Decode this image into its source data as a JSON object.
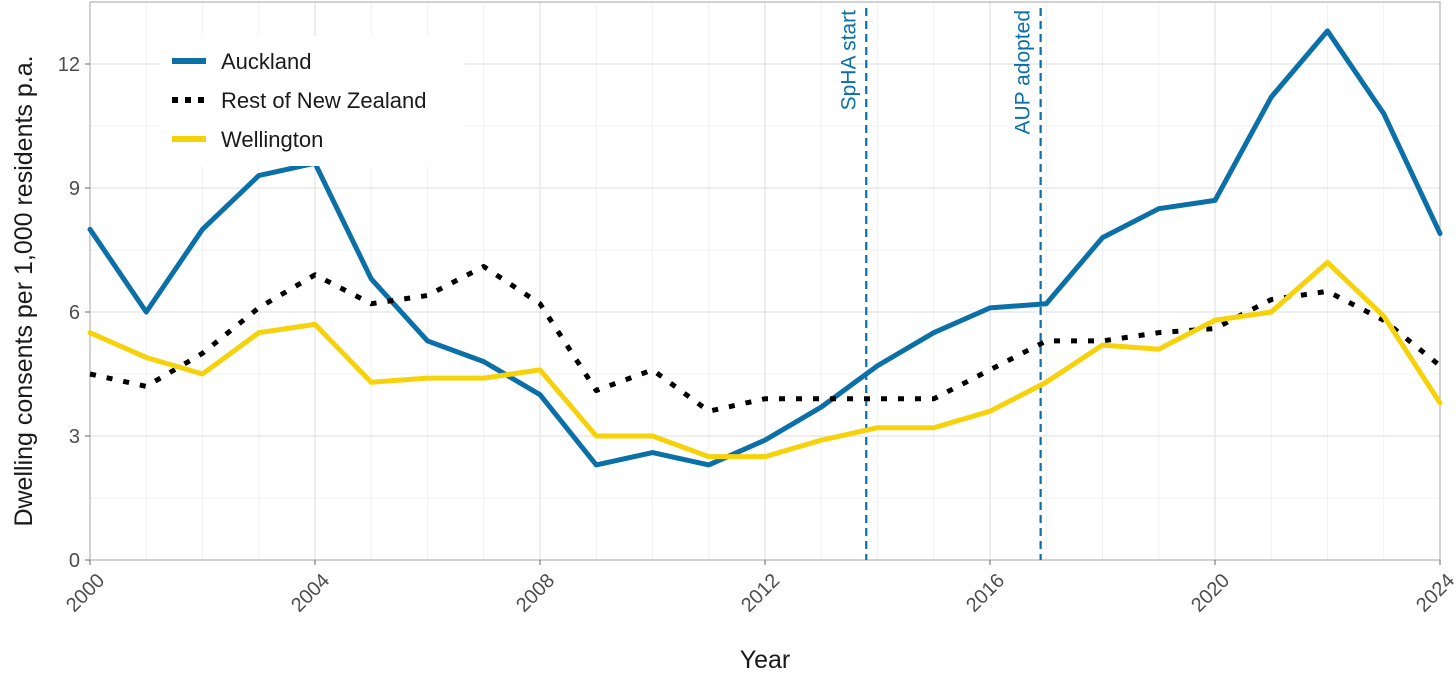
{
  "chart_data": {
    "type": "line",
    "title": "",
    "xlabel": "Year",
    "ylabel": "Dwelling consents per 1,000 residents p.a.",
    "xlim": [
      2000,
      2024
    ],
    "ylim": [
      0,
      13.5
    ],
    "x_ticks": [
      "2000",
      "2004",
      "2008",
      "2012",
      "2016",
      "2020",
      "2024"
    ],
    "y_ticks": [
      "0",
      "3",
      "6",
      "9",
      "12"
    ],
    "grid": true,
    "legend_position": "top-left",
    "x": [
      2000,
      2001,
      2002,
      2003,
      2004,
      2005,
      2006,
      2007,
      2008,
      2009,
      2010,
      2011,
      2012,
      2013,
      2014,
      2015,
      2016,
      2017,
      2018,
      2019,
      2020,
      2021,
      2022,
      2023,
      2024
    ],
    "series": [
      {
        "name": "Auckland",
        "color": "#0b6fa8",
        "style": "solid",
        "values": [
          8.0,
          6.0,
          8.0,
          9.3,
          9.6,
          6.8,
          5.3,
          4.8,
          4.0,
          2.3,
          2.6,
          2.3,
          2.9,
          3.7,
          4.7,
          5.5,
          6.1,
          6.2,
          7.8,
          8.5,
          8.7,
          11.2,
          12.8,
          10.8,
          7.9
        ]
      },
      {
        "name": "Rest of New Zealand",
        "color": "#000000",
        "style": "dotted",
        "values": [
          4.5,
          4.2,
          5.0,
          6.1,
          6.9,
          6.2,
          6.4,
          7.1,
          6.2,
          4.1,
          4.6,
          3.6,
          3.9,
          3.9,
          3.9,
          3.9,
          4.6,
          5.3,
          5.3,
          5.5,
          5.6,
          6.3,
          6.5,
          5.8,
          4.7
        ]
      },
      {
        "name": "Wellington",
        "color": "#f6d20a",
        "style": "solid",
        "values": [
          5.5,
          4.9,
          4.5,
          5.5,
          5.7,
          4.3,
          4.4,
          4.4,
          4.6,
          3.0,
          3.0,
          2.5,
          2.5,
          2.9,
          3.2,
          3.2,
          3.6,
          4.3,
          5.2,
          5.1,
          5.8,
          6.0,
          7.2,
          5.9,
          3.8
        ]
      }
    ],
    "annotations": [
      {
        "label": "SpHA start",
        "x": 2013.8,
        "color": "#0b6fa8",
        "style": "dashed"
      },
      {
        "label": "AUP adopted",
        "x": 2016.9,
        "color": "#0b6fa8",
        "style": "dashed"
      }
    ]
  }
}
